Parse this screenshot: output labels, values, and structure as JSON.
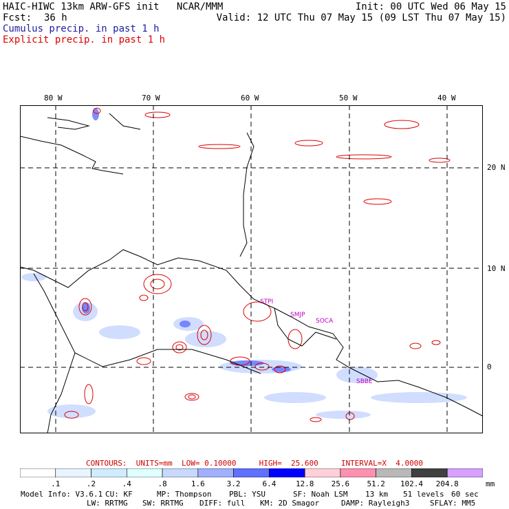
{
  "header": {
    "line1_left": "HAIC-HIWC 13km ARW-GFS init   NCAR/MMM",
    "line1_right": "Init: 00 UTC Wed 06 May 15",
    "line2_fcst_label": "Fcst:",
    "line2_fcst_value": "36 h",
    "line2_right": "Valid: 12 UTC Thu 07 May 15 (09 LST Thu 07 May 15)",
    "legend_cumulus": "Cumulus precip. in past 1 h",
    "legend_explicit": "Explicit precip. in past 1 h",
    "color_cumulus": "#2020a0",
    "color_explicit": "#dd0000"
  },
  "map": {
    "lon_labels": [
      "80 W",
      "70 W",
      "60 W",
      "50 W",
      "40 W"
    ],
    "lat_labels": [
      "20 N",
      "10 N",
      "0"
    ],
    "stations": [
      {
        "name": "STPI"
      },
      {
        "name": "SMJP"
      },
      {
        "name": "SOCA"
      },
      {
        "name": "SBBE"
      }
    ],
    "station_color": "#c000c0"
  },
  "contours": {
    "label": "CONTOURS:  UNITS=mm  LOW= 0.10000     HIGH=  25.600     INTERVAL=X  4.0000"
  },
  "colorbar": {
    "units": "mm",
    "labels": [
      ".1",
      ".2",
      ".4",
      ".8",
      "1.6",
      "3.2",
      "6.4",
      "12.8",
      "25.6",
      "51.2",
      "102.4",
      "204.8"
    ],
    "colors": [
      "#ffffff",
      "#e8f4ff",
      "#d0ecff",
      "#e0ffff",
      "#c8d8ff",
      "#a0b0ff",
      "#6070ff",
      "#0000ff",
      "#ffd0d8",
      "#ff90b0",
      "#b8b8b8",
      "#404040",
      "#d8a0ff"
    ]
  },
  "model_info": {
    "line1": [
      "Model Info: V3.6.1",
      "CU: KF",
      "MP: Thompson",
      "PBL: YSU",
      "SF: Noah LSM",
      "13 km",
      "51 levels",
      "60 sec"
    ],
    "line2": [
      "LW: RRTMG",
      "SW: RRTMG",
      "DIFF: full",
      "KM: 2D Smagor",
      "DAMP: Rayleigh3",
      "SFLAY: MM5"
    ]
  }
}
